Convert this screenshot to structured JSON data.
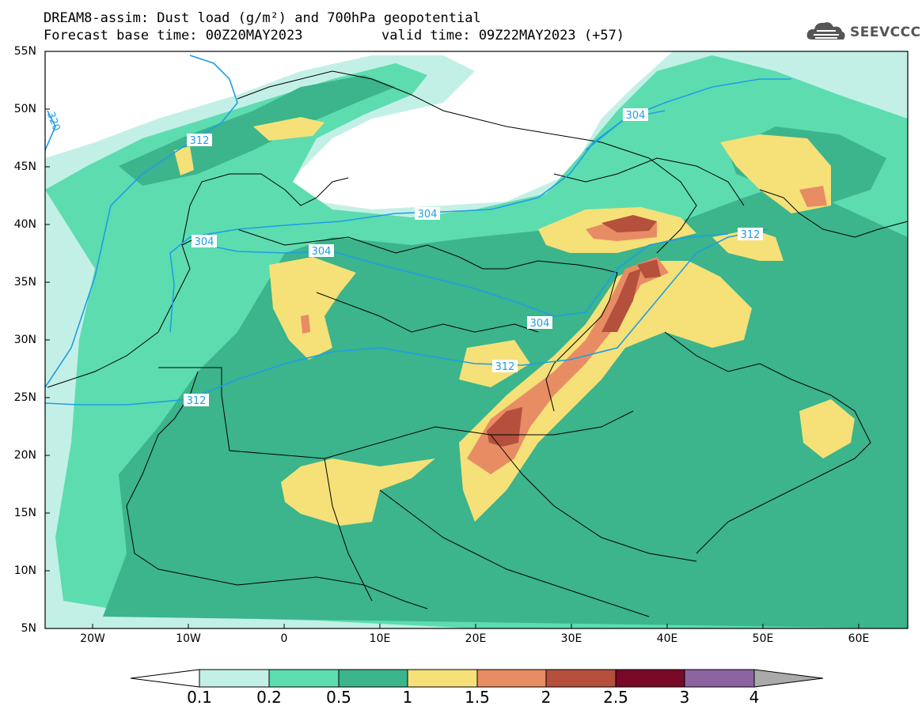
{
  "title": {
    "line1": "DREAM8-assim: Dust load (g/m²) and 700hPa geopotential",
    "base_time": "Forecast base time: 00Z20MAY2023",
    "valid_time": "valid time: 09Z22MAY2023 (+57)"
  },
  "logo": {
    "text": "SEEVCCC",
    "icon": "cloud-icon"
  },
  "axes": {
    "lat_labels": [
      "55N",
      "50N",
      "45N",
      "40N",
      "35N",
      "30N",
      "25N",
      "20N",
      "15N",
      "10N",
      "5N"
    ],
    "lon_labels": [
      "20W",
      "10W",
      "0",
      "10E",
      "20E",
      "30E",
      "40E",
      "50E",
      "60E"
    ]
  },
  "contours": {
    "unit_note": "700hPa geopotential (dam)",
    "labels": [
      "304",
      "304",
      "304",
      "304",
      "304",
      "312",
      "312",
      "312",
      "312",
      "320"
    ]
  },
  "colorbar": {
    "levels": [
      "0.1",
      "0.2",
      "0.5",
      "1",
      "1.5",
      "2",
      "2.5",
      "3",
      "4"
    ],
    "colors": [
      "#c3f0e6",
      "#5ddcb0",
      "#3cb48c",
      "#f5e178",
      "#e88c64",
      "#b4503c",
      "#780a28",
      "#8c64a0",
      "#aaaaaa"
    ]
  }
}
